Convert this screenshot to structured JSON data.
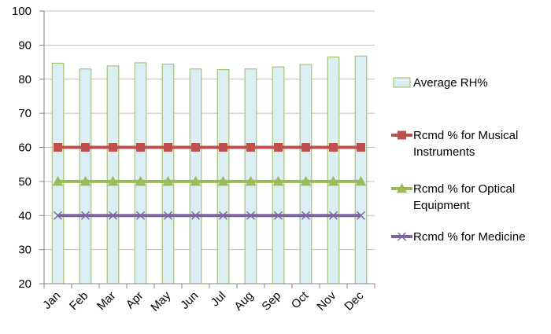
{
  "chart_data": {
    "type": "bar",
    "categories": [
      "Jan",
      "Feb",
      "Mar",
      "Apr",
      "May",
      "Jun",
      "Jul",
      "Aug",
      "Sep",
      "Oct",
      "Nov",
      "Dec"
    ],
    "ylim": [
      20,
      100
    ],
    "yticks": [
      20,
      30,
      40,
      50,
      60,
      70,
      80,
      90,
      100
    ],
    "grid": "horizontal",
    "legend_position": "right",
    "series": [
      {
        "name": "Average RH%",
        "kind": "bar",
        "values": [
          84.7,
          83.0,
          83.9,
          84.8,
          84.4,
          83.0,
          82.8,
          83.0,
          83.6,
          84.3,
          86.5,
          86.8
        ],
        "fill": "#DAEEF3",
        "stroke": "#9BBB59"
      },
      {
        "name": "Rcmd % for Musical Instruments",
        "legend_lines": [
          "Rcmd % for Musical",
          "Instruments"
        ],
        "kind": "line",
        "marker": "square",
        "values": [
          60,
          60,
          60,
          60,
          60,
          60,
          60,
          60,
          60,
          60,
          60,
          60
        ],
        "color": "#C0504D"
      },
      {
        "name": "Rcmd % for Optical Equipment",
        "legend_lines": [
          "Rcmd % for Optical",
          "Equipment"
        ],
        "kind": "line",
        "marker": "triangle",
        "values": [
          50,
          50,
          50,
          50,
          50,
          50,
          50,
          50,
          50,
          50,
          50,
          50
        ],
        "color": "#9BBB59"
      },
      {
        "name": "Rcmd % for Medicine",
        "legend_lines": [
          "Rcmd % for Medicine"
        ],
        "kind": "line",
        "marker": "x",
        "values": [
          40,
          40,
          40,
          40,
          40,
          40,
          40,
          40,
          40,
          40,
          40,
          40
        ],
        "color": "#8064A2"
      }
    ]
  }
}
